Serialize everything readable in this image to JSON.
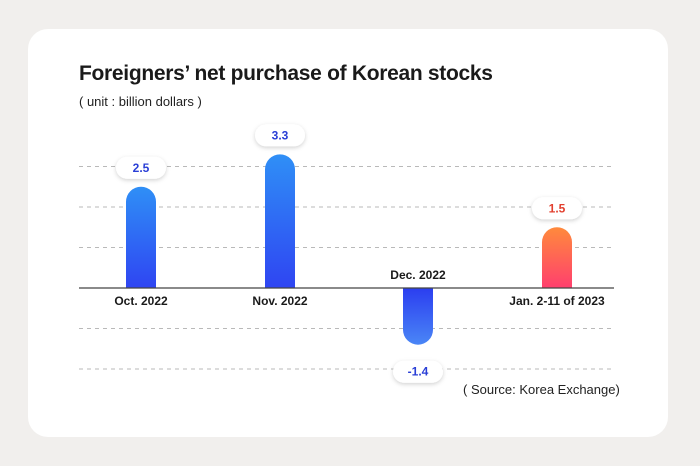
{
  "chart_data": {
    "type": "bar",
    "title": "Foreigners’ net purchase of Korean stocks",
    "subtitle": "( unit : billion dollars )",
    "source": "( Source: Korea Exchange)",
    "categories": [
      "Oct. 2022",
      "Nov. 2022",
      "Dec. 2022",
      "Jan. 2-11 of 2023"
    ],
    "values": [
      2.5,
      3.3,
      -1.4,
      1.5
    ],
    "value_labels": [
      "2.5",
      "3.3",
      "-1.4",
      "1.5"
    ],
    "gridlines": [
      -2,
      -1,
      1,
      2,
      3
    ],
    "bar_colors": {
      "positive_top": "#2f8ff6",
      "positive_bottom": "#2f45f2",
      "negative_top": "#2b3ef0",
      "negative_bottom": "#4a86f6",
      "highlight_top": "#ff8a3c",
      "highlight_bottom": "#ff3f6e",
      "label_blue": "#2a3fd6",
      "label_red": "#e2402f"
    },
    "highlight_index": 3
  }
}
